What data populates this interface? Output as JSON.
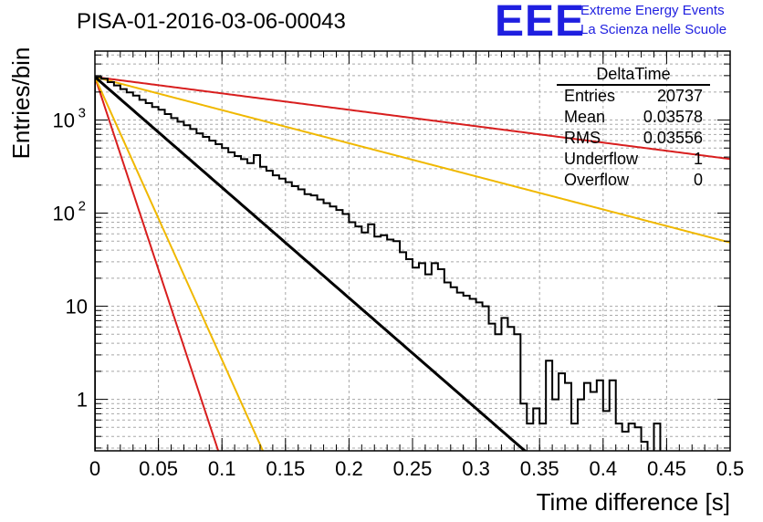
{
  "title": "PISA-01-2016-03-06-00043",
  "logo": {
    "text": "EEE",
    "line1": "Extreme Energy Events",
    "line2": "La Scienza nelle Scuole",
    "color": "#1f1fe0"
  },
  "stats": {
    "name": "DeltaTime",
    "rows": [
      {
        "key": "Entries",
        "value": "20737"
      },
      {
        "key": "Mean",
        "value": "0.03578"
      },
      {
        "key": "RMS",
        "value": "0.03556"
      },
      {
        "key": "Underflow",
        "value": "1"
      },
      {
        "key": "Overflow",
        "value": "0"
      }
    ]
  },
  "chart_data": {
    "type": "line",
    "xlabel": "Time difference [s]",
    "ylabel": "Entries/bin",
    "xlim": [
      0,
      0.5
    ],
    "ylim": [
      0.28,
      5500
    ],
    "yscale": "log",
    "grid": true,
    "x_ticks": [
      "0",
      "0.05",
      "0.1",
      "0.15",
      "0.2",
      "0.25",
      "0.3",
      "0.35",
      "0.4",
      "0.45",
      "0.5"
    ],
    "y_ticks": [
      {
        "value": 1,
        "label": "1"
      },
      {
        "value": 10,
        "label": "10"
      },
      {
        "value": 100,
        "label": "10",
        "exp": "2"
      },
      {
        "value": 1000,
        "label": "10",
        "exp": "3"
      }
    ],
    "histogram": {
      "bin_width": 0.005,
      "color": "#000000",
      "values": [
        2900,
        2780,
        2550,
        2350,
        2150,
        1980,
        1830,
        1650,
        1520,
        1380,
        1290,
        1160,
        1050,
        960,
        880,
        800,
        720,
        660,
        600,
        550,
        500,
        450,
        410,
        380,
        345,
        420,
        315,
        285,
        255,
        235,
        215,
        195,
        180,
        160,
        155,
        140,
        128,
        118,
        108,
        98,
        80,
        72,
        62,
        76,
        56,
        58,
        52,
        50,
        38,
        32,
        26,
        29,
        22,
        29,
        25,
        18,
        16,
        14,
        13,
        12,
        11,
        10,
        6.5,
        5,
        7.5,
        6,
        5,
        0.9,
        0.55,
        0.8,
        0.55,
        2.6,
        1,
        1.9,
        1.5,
        0.55,
        1,
        1.5,
        1.2,
        1.6,
        0.75,
        1.6,
        0.55,
        0.45,
        0.55,
        0.5,
        0.35,
        0.25,
        0.55,
        0.25,
        0.25,
        0.25,
        0.25,
        0.25,
        0.25,
        0.25,
        0.25,
        0.25,
        0.25,
        0.25
      ]
    },
    "curves": [
      {
        "type": "exponential",
        "amplitude": 2900,
        "tau": 0.0366,
        "color": "#000000",
        "width": 3
      },
      {
        "type": "exponential",
        "amplitude": 2900,
        "tau": 0.0105,
        "color": "#d81e1e",
        "width": 2
      },
      {
        "type": "exponential",
        "amplitude": 2900,
        "tau": 0.0143,
        "color": "#f0b800",
        "width": 2
      },
      {
        "type": "exponential",
        "amplitude": 2900,
        "tau": 0.2465,
        "color": "#d81e1e",
        "width": 2
      },
      {
        "type": "exponential",
        "amplitude": 2900,
        "tau": 0.1221,
        "color": "#f0b800",
        "width": 2
      }
    ]
  }
}
